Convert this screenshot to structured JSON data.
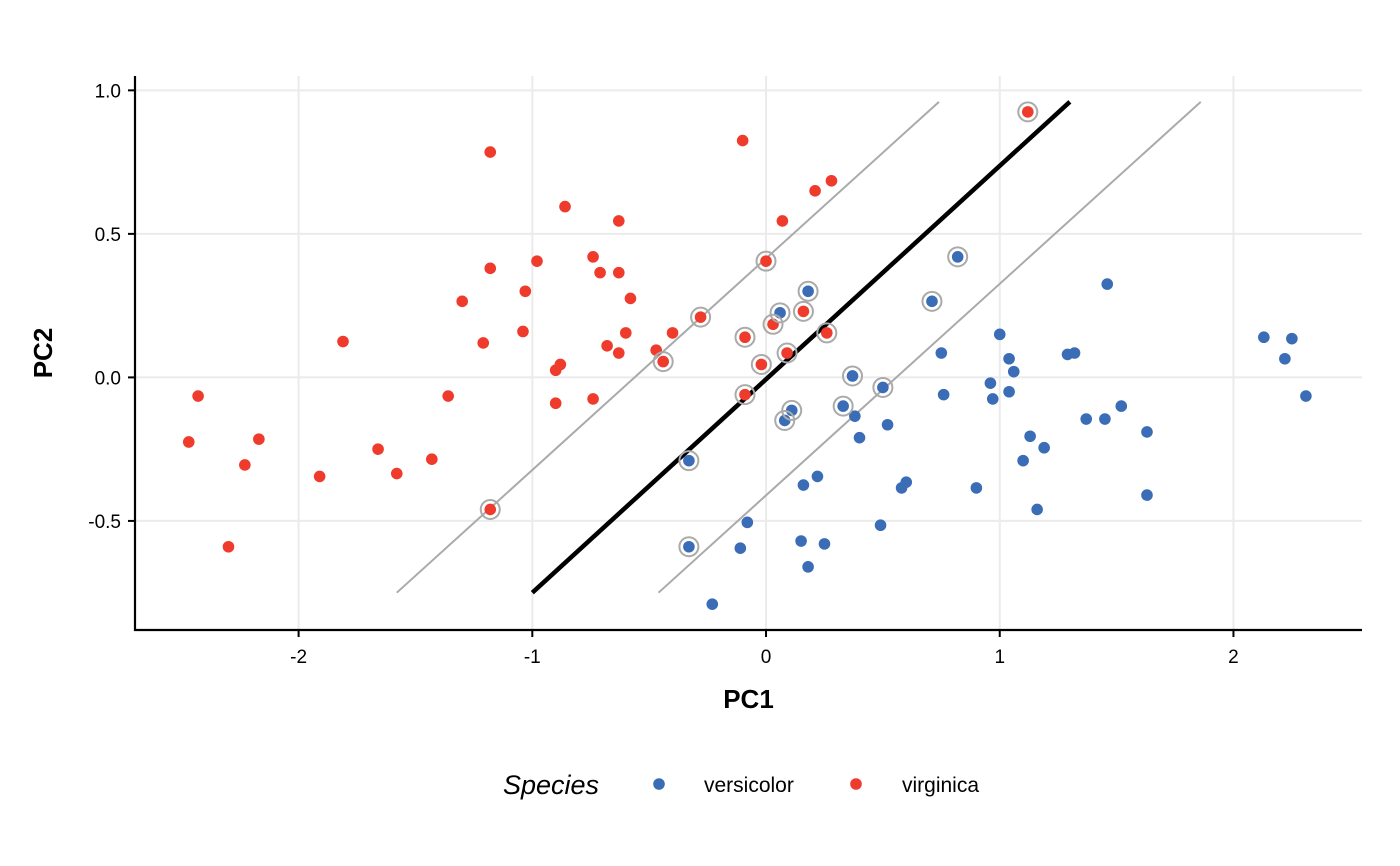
{
  "chart_data": {
    "type": "scatter",
    "title": "",
    "xlabel": "PC1",
    "ylabel": "PC2",
    "xlim": [
      -2.7,
      2.55
    ],
    "ylim": [
      -0.88,
      1.05
    ],
    "x_ticks": [
      -2,
      -1,
      0,
      1,
      2
    ],
    "x_tick_labels": [
      "-2",
      "-1",
      "0",
      "1",
      "2"
    ],
    "y_ticks": [
      -0.5,
      0.0,
      0.5,
      1.0
    ],
    "y_tick_labels": [
      "-0.5",
      "0.0",
      "0.5",
      "1.0"
    ],
    "grid": true,
    "legend_position": "bottom",
    "legend_title": "Species",
    "colors": {
      "versicolor": "#3a6db5",
      "virginica": "#ee3b2b",
      "support_ring": "#aaaaaa",
      "decision_line": "#000000",
      "margin_line": "#aaaaaa",
      "grid": "#ebebeb",
      "axis": "#000000"
    },
    "series": [
      {
        "name": "versicolor",
        "points": [
          [
            -0.23,
            -0.79
          ],
          [
            -0.11,
            -0.595
          ],
          [
            -0.08,
            -0.505
          ],
          [
            0.15,
            -0.57
          ],
          [
            0.18,
            -0.66
          ],
          [
            0.25,
            -0.58
          ],
          [
            0.49,
            -0.515
          ],
          [
            0.16,
            -0.375
          ],
          [
            0.22,
            -0.345
          ],
          [
            0.4,
            -0.21
          ],
          [
            0.38,
            -0.135
          ],
          [
            0.52,
            -0.165
          ],
          [
            0.58,
            -0.385
          ],
          [
            0.6,
            -0.365
          ],
          [
            0.75,
            0.085
          ],
          [
            0.76,
            -0.06
          ],
          [
            0.9,
            -0.385
          ],
          [
            0.96,
            -0.02
          ],
          [
            0.97,
            -0.075
          ],
          [
            1.0,
            0.15
          ],
          [
            1.04,
            0.065
          ],
          [
            1.04,
            -0.05
          ],
          [
            1.06,
            0.02
          ],
          [
            1.1,
            -0.29
          ],
          [
            1.13,
            -0.205
          ],
          [
            1.16,
            -0.46
          ],
          [
            1.19,
            -0.245
          ],
          [
            1.29,
            0.08
          ],
          [
            1.32,
            0.085
          ],
          [
            1.37,
            -0.145
          ],
          [
            1.45,
            -0.145
          ],
          [
            1.46,
            0.325
          ],
          [
            1.52,
            -0.1
          ],
          [
            1.63,
            -0.19
          ],
          [
            1.63,
            -0.41
          ],
          [
            2.13,
            0.14
          ],
          [
            2.22,
            0.065
          ],
          [
            2.25,
            0.135
          ],
          [
            2.31,
            -0.065
          ],
          [
            -0.33,
            -0.29
          ],
          [
            -0.33,
            -0.59
          ],
          [
            0.06,
            0.225
          ],
          [
            0.18,
            0.3
          ],
          [
            0.08,
            -0.15
          ],
          [
            0.11,
            -0.115
          ],
          [
            0.33,
            -0.1
          ],
          [
            0.37,
            0.005
          ],
          [
            0.5,
            -0.035
          ],
          [
            0.71,
            0.265
          ],
          [
            0.82,
            0.42
          ]
        ]
      },
      {
        "name": "virginica",
        "points": [
          [
            -2.47,
            -0.225
          ],
          [
            -2.43,
            -0.065
          ],
          [
            -2.3,
            -0.59
          ],
          [
            -2.23,
            -0.305
          ],
          [
            -2.17,
            -0.215
          ],
          [
            -1.91,
            -0.345
          ],
          [
            -1.81,
            0.125
          ],
          [
            -1.66,
            -0.25
          ],
          [
            -1.58,
            -0.335
          ],
          [
            -1.43,
            -0.285
          ],
          [
            -1.36,
            -0.065
          ],
          [
            -1.3,
            0.265
          ],
          [
            -1.21,
            0.12
          ],
          [
            -1.18,
            0.785
          ],
          [
            -1.18,
            0.38
          ],
          [
            -1.04,
            0.16
          ],
          [
            -1.03,
            0.3
          ],
          [
            -0.98,
            0.405
          ],
          [
            -0.9,
            0.025
          ],
          [
            -0.9,
            -0.09
          ],
          [
            -0.88,
            0.045
          ],
          [
            -0.86,
            0.595
          ],
          [
            -0.74,
            0.42
          ],
          [
            -0.74,
            -0.075
          ],
          [
            -0.71,
            0.365
          ],
          [
            -0.68,
            0.11
          ],
          [
            -0.63,
            0.545
          ],
          [
            -0.63,
            0.365
          ],
          [
            -0.63,
            0.085
          ],
          [
            -0.6,
            0.155
          ],
          [
            -0.58,
            0.275
          ],
          [
            -0.47,
            0.095
          ],
          [
            -0.4,
            0.155
          ],
          [
            -0.1,
            0.825
          ],
          [
            0.07,
            0.545
          ],
          [
            0.21,
            0.65
          ],
          [
            0.28,
            0.685
          ],
          [
            -1.18,
            -0.46
          ],
          [
            -0.44,
            0.055
          ],
          [
            -0.28,
            0.21
          ],
          [
            -0.09,
            0.14
          ],
          [
            -0.09,
            -0.06
          ],
          [
            -0.02,
            0.045
          ],
          [
            0.0,
            0.405
          ],
          [
            0.03,
            0.185
          ],
          [
            0.09,
            0.085
          ],
          [
            0.16,
            0.23
          ],
          [
            0.26,
            0.155
          ],
          [
            1.12,
            0.925
          ]
        ]
      }
    ],
    "support_vectors": [
      [
        -0.33,
        -0.29
      ],
      [
        -0.33,
        -0.59
      ],
      [
        0.06,
        0.225
      ],
      [
        0.18,
        0.3
      ],
      [
        0.08,
        -0.15
      ],
      [
        0.11,
        -0.115
      ],
      [
        0.33,
        -0.1
      ],
      [
        0.37,
        0.005
      ],
      [
        0.5,
        -0.035
      ],
      [
        0.71,
        0.265
      ],
      [
        0.82,
        0.42
      ],
      [
        -1.18,
        -0.46
      ],
      [
        -0.44,
        0.055
      ],
      [
        -0.28,
        0.21
      ],
      [
        -0.09,
        0.14
      ],
      [
        -0.09,
        -0.06
      ],
      [
        -0.02,
        0.045
      ],
      [
        0.0,
        0.405
      ],
      [
        0.03,
        0.185
      ],
      [
        0.09,
        0.085
      ],
      [
        0.16,
        0.23
      ],
      [
        0.26,
        0.155
      ],
      [
        1.12,
        0.925
      ]
    ],
    "lines": [
      {
        "name": "decision-boundary",
        "x": [
          -1.0,
          1.3
        ],
        "y": [
          -0.75,
          0.96
        ]
      },
      {
        "name": "margin-upper",
        "x": [
          -1.58,
          0.74
        ],
        "y": [
          -0.75,
          0.96
        ]
      },
      {
        "name": "margin-lower",
        "x": [
          -0.46,
          1.86
        ],
        "y": [
          -0.75,
          0.96
        ]
      }
    ]
  }
}
